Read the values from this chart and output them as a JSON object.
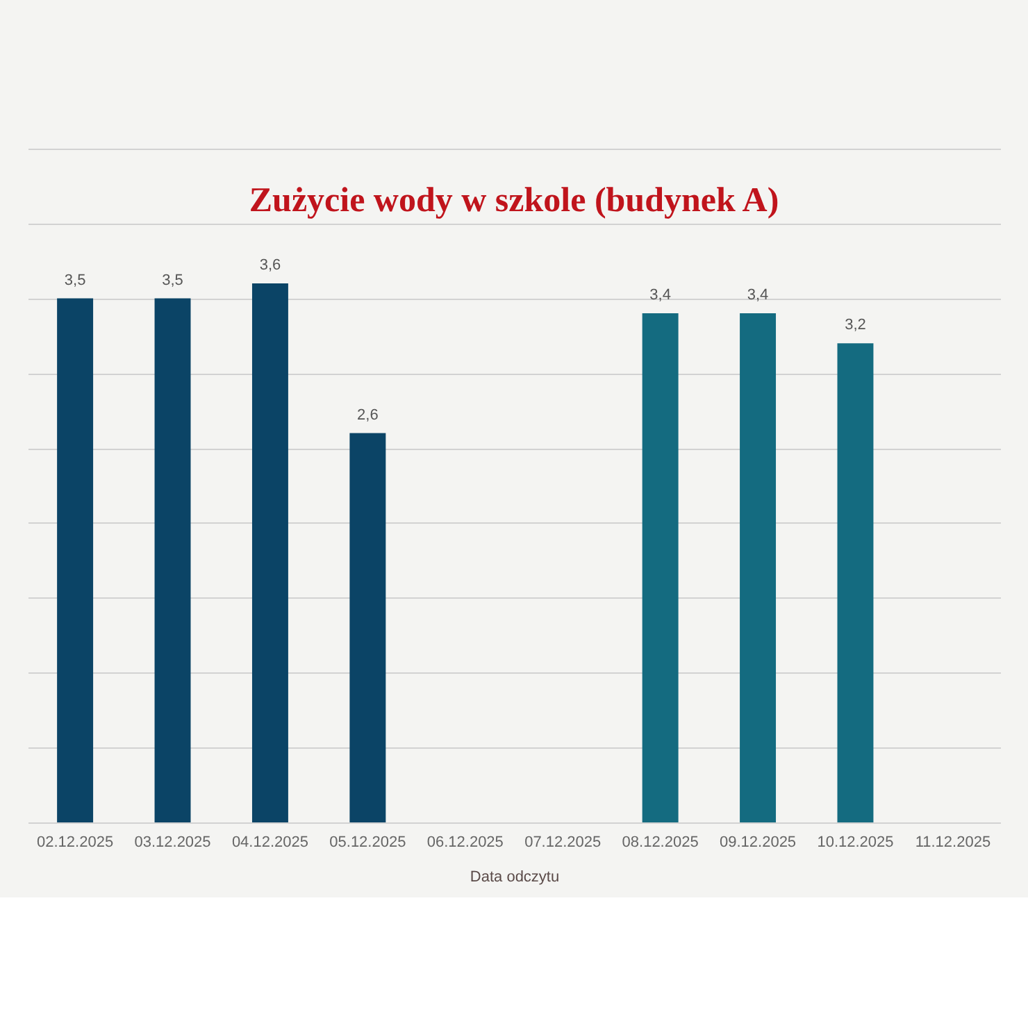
{
  "chart_data": {
    "type": "bar",
    "title": "Zużycie wody w szkole (budynek A)",
    "xlabel": "Data odczytu",
    "categories": [
      "02.12.2025",
      "03.12.2025",
      "04.12.2025",
      "05.12.2025",
      "06.12.2025",
      "07.12.2025",
      "08.12.2025",
      "09.12.2025",
      "10.12.2025",
      "11.12.2025"
    ],
    "values": [
      3.5,
      3.5,
      3.6,
      2.6,
      null,
      null,
      3.4,
      3.4,
      3.2,
      null
    ],
    "colors": [
      "#0b4466",
      "#0b4466",
      "#0b4466",
      "#0b4466",
      null,
      null,
      "#146b80",
      "#146b80",
      "#146b80",
      null
    ],
    "value_labels": [
      "3,5",
      "3,5",
      "3,6",
      "2,6",
      null,
      null,
      "3,4",
      "3,4",
      "3,2",
      null
    ],
    "ylim": [
      0,
      4.5
    ],
    "yticks": [
      {
        "value": 0,
        "label": null
      },
      {
        "value": 0.5,
        "label": null
      },
      {
        "value": 1,
        "label": null
      },
      {
        "value": 1.5,
        "label": null
      },
      {
        "value": 2,
        "label": null
      },
      {
        "value": 2.5,
        "label": null
      },
      {
        "value": 3,
        "label": null
      },
      {
        "value": 3.5,
        "label": null
      },
      {
        "value": 4,
        "label": null
      },
      {
        "value": 4.5,
        "label": null
      }
    ],
    "grid": "y",
    "tick_labels": "x"
  }
}
